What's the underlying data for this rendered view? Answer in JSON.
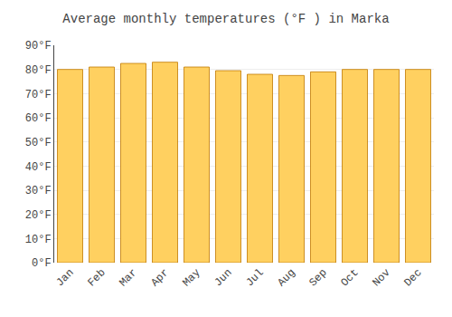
{
  "chart_data": {
    "type": "bar",
    "title": "Average monthly temperatures (°F ) in Marka",
    "categories": [
      "Jan",
      "Feb",
      "Mar",
      "Apr",
      "May",
      "Jun",
      "Jul",
      "Aug",
      "Sep",
      "Oct",
      "Nov",
      "Dec"
    ],
    "values": [
      80.0,
      81.0,
      82.5,
      83.0,
      81.0,
      79.5,
      78.0,
      77.5,
      79.0,
      80.0,
      80.0,
      80.0
    ],
    "color": "#FFD060",
    "ylim": [
      0,
      90
    ],
    "yticks": [
      {
        "value": 0,
        "label": "0°F"
      },
      {
        "value": 10,
        "label": "10°F"
      },
      {
        "value": 20,
        "label": "20°F"
      },
      {
        "value": 30,
        "label": "30°F"
      },
      {
        "value": 40,
        "label": "40°F"
      },
      {
        "value": 50,
        "label": "50°F"
      },
      {
        "value": 60,
        "label": "60°F"
      },
      {
        "value": 70,
        "label": "70°F"
      },
      {
        "value": 80,
        "label": "80°F"
      },
      {
        "value": 90,
        "label": "90°F"
      }
    ],
    "grid": true
  }
}
